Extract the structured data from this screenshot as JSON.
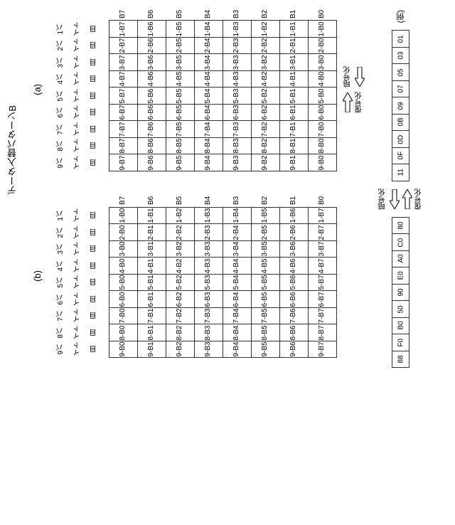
{
  "title": "データ入替パターンB",
  "section_labels": {
    "a": "(a)",
    "b": "(b)"
  },
  "row_labels": [
    "1バイト目",
    "2バイト目",
    "3バイト目",
    "4バイト目",
    "5バイト目",
    "6バイト目",
    "7バイト目",
    "8バイト目",
    "9バイト目"
  ],
  "col_headers": [
    "B7",
    "B6",
    "B5",
    "B4",
    "B3",
    "B2",
    "B1",
    "B0"
  ],
  "table_a": [
    [
      "1-B7",
      "1-B6",
      "1-B5",
      "1-B4",
      "1-B3",
      "1-B2",
      "1-B1",
      "1-B0"
    ],
    [
      "2-B7",
      "2-B6",
      "2-B5",
      "2-B4",
      "2-B3",
      "2-B2",
      "2-B1",
      "2-B0"
    ],
    [
      "3-B7",
      "3-B6",
      "3-B5",
      "3-B4",
      "3-B3",
      "3-B2",
      "3-B1",
      "3-B0"
    ],
    [
      "4-B7",
      "4-B6",
      "4-B5",
      "4-B4",
      "4-B3",
      "4-B2",
      "4-B1",
      "4-B0"
    ],
    [
      "5-B7",
      "5-B6",
      "5-B5",
      "5-B4",
      "5-B3",
      "5-B2",
      "5-B1",
      "5-B0"
    ],
    [
      "6-B7",
      "6-B6",
      "6-B5",
      "6-B4",
      "6-B3",
      "6-B2",
      "6-B1",
      "6-B0"
    ],
    [
      "7-B7",
      "7-B6",
      "7-B5",
      "7-B4",
      "7-B3",
      "7-B2",
      "7-B1",
      "7-B0"
    ],
    [
      "8-B7",
      "8-B6",
      "8-B5",
      "8-B4",
      "8-B3",
      "8-B2",
      "8-B1",
      "8-B0"
    ],
    [
      "9-B7",
      "9-B6",
      "9-B5",
      "9-B4",
      "9-B3",
      "9-B2",
      "9-B1",
      "9-B0"
    ]
  ],
  "table_b": [
    [
      "1-B0",
      "1-B1",
      "1-B2",
      "1-B3",
      "1-B4",
      "1-B5",
      "1-B6",
      "1-B7"
    ],
    [
      "2-B0",
      "2-B1",
      "2-B2",
      "2-B3",
      "2-B4",
      "2-B5",
      "2-B6",
      "2-B7"
    ],
    [
      "3-B0",
      "3-B1",
      "3-B2",
      "3-B3",
      "3-B4",
      "3-B5",
      "3-B6",
      "3-B7"
    ],
    [
      "4-B0",
      "4-B1",
      "4-B2",
      "4-B3",
      "4-B4",
      "4-B5",
      "4-B6",
      "4-B7"
    ],
    [
      "5-B0",
      "5-B1",
      "5-B2",
      "5-B3",
      "5-B4",
      "5-B5",
      "5-B6",
      "5-B7"
    ],
    [
      "6-B0",
      "6-B1",
      "6-B2",
      "6-B3",
      "6-B4",
      "6-B5",
      "6-B6",
      "6-B7"
    ],
    [
      "7-B0",
      "7-B1",
      "7-B2",
      "7-B3",
      "7-B4",
      "7-B5",
      "7-B6",
      "7-B7"
    ],
    [
      "8-B0",
      "8-B1",
      "8-B2",
      "8-B3",
      "8-B4",
      "8-B5",
      "8-B6",
      "8-B7"
    ],
    [
      "9-B0",
      "9-B1",
      "9-B2",
      "9-B3",
      "9-B4",
      "9-B5",
      "9-B6",
      "9-B7"
    ]
  ],
  "arrow_labels": {
    "encrypt": "暗号化",
    "decrypt": "復号化"
  },
  "example_label": "(例)",
  "example_before": [
    "01",
    "03",
    "05",
    "07",
    "09",
    "0B",
    "0D",
    "0F",
    "11"
  ],
  "example_after": [
    "80",
    "C0",
    "A0",
    "E0",
    "90",
    "50",
    "B0",
    "F0",
    "88"
  ],
  "colors": {
    "border": "#333333",
    "bg": "#ffffff",
    "text": "#000000"
  }
}
